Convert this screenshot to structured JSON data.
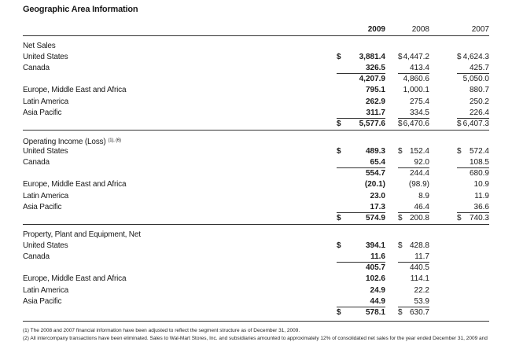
{
  "title": "Geographic Area Information",
  "years": [
    "2009",
    "2008",
    "2007"
  ],
  "sections": [
    {
      "header": "Net Sales",
      "rows": [
        {
          "label": "United States",
          "v2009": "3,881.4",
          "v2008": "4,447.2",
          "v2007": "4,624.3",
          "cur2009": "$",
          "cur2008": "$",
          "cur2007": "$"
        },
        {
          "label": "Canada",
          "v2009": "326.5",
          "v2008": "413.4",
          "v2007": "425.7"
        },
        {
          "label": "",
          "v2009": "4,207.9",
          "v2008": "4,860.6",
          "v2007": "5,050.0"
        },
        {
          "label": "Europe, Middle East and Africa",
          "v2009": "795.1",
          "v2008": "1,000.1",
          "v2007": "880.7"
        },
        {
          "label": "Latin America",
          "v2009": "262.9",
          "v2008": "275.4",
          "v2007": "250.2"
        },
        {
          "label": "Asia Pacific",
          "v2009": "311.7",
          "v2008": "334.5",
          "v2007": "226.4"
        },
        {
          "label": "",
          "v2009": "5,577.6",
          "v2008": "6,470.6",
          "v2007": "6,407.3",
          "cur2009": "$",
          "cur2008": "$",
          "cur2007": "$"
        }
      ]
    },
    {
      "header": "Operating Income (Loss)",
      "header_sup": "(1), (6)",
      "rows": [
        {
          "label": "United States",
          "v2009": "489.3",
          "v2008": "152.4",
          "v2007": "572.4",
          "cur2009": "$",
          "cur2008": "$",
          "cur2007": "$"
        },
        {
          "label": "Canada",
          "v2009": "65.4",
          "v2008": "92.0",
          "v2007": "108.5"
        },
        {
          "label": "",
          "v2009": "554.7",
          "v2008": "244.4",
          "v2007": "680.9"
        },
        {
          "label": "Europe, Middle East and Africa",
          "v2009": "(20.1)",
          "v2008": "(98.9)",
          "v2007": "10.9"
        },
        {
          "label": "Latin America",
          "v2009": "23.0",
          "v2008": "8.9",
          "v2007": "11.9"
        },
        {
          "label": "Asia Pacific",
          "v2009": "17.3",
          "v2008": "46.4",
          "v2007": "36.6"
        },
        {
          "label": "",
          "v2009": "574.9",
          "v2008": "200.8",
          "v2007": "740.3",
          "cur2009": "$",
          "cur2008": "$",
          "cur2007": "$"
        }
      ]
    },
    {
      "header": "Property, Plant and Equipment, Net",
      "rows": [
        {
          "label": "United States",
          "v2009": "394.1",
          "v2008": "428.8",
          "v2007": "",
          "cur2009": "$",
          "cur2008": "$"
        },
        {
          "label": "Canada",
          "v2009": "11.6",
          "v2008": "11.7",
          "v2007": ""
        },
        {
          "label": "",
          "v2009": "405.7",
          "v2008": "440.5",
          "v2007": ""
        },
        {
          "label": "Europe, Middle East and Africa",
          "v2009": "102.6",
          "v2008": "114.1",
          "v2007": ""
        },
        {
          "label": "Latin America",
          "v2009": "24.9",
          "v2008": "22.2",
          "v2007": ""
        },
        {
          "label": "Asia Pacific",
          "v2009": "44.9",
          "v2008": "53.9",
          "v2007": ""
        },
        {
          "label": "",
          "v2009": "578.1",
          "v2008": "630.7",
          "v2007": "",
          "cur2009": "$",
          "cur2008": "$"
        }
      ]
    }
  ],
  "footnotes": [
    "(1) The 2008 and 2007 financial information have been adjusted to reflect the segment structure as of December 31, 2009.",
    "(2) All intercompany transactions have been eliminated. Sales to Wal-Mart Stores, Inc. and subsidiaries amounted to approximately 12% of consolidated net sales for the year ended December 31, 2009 and"
  ]
}
